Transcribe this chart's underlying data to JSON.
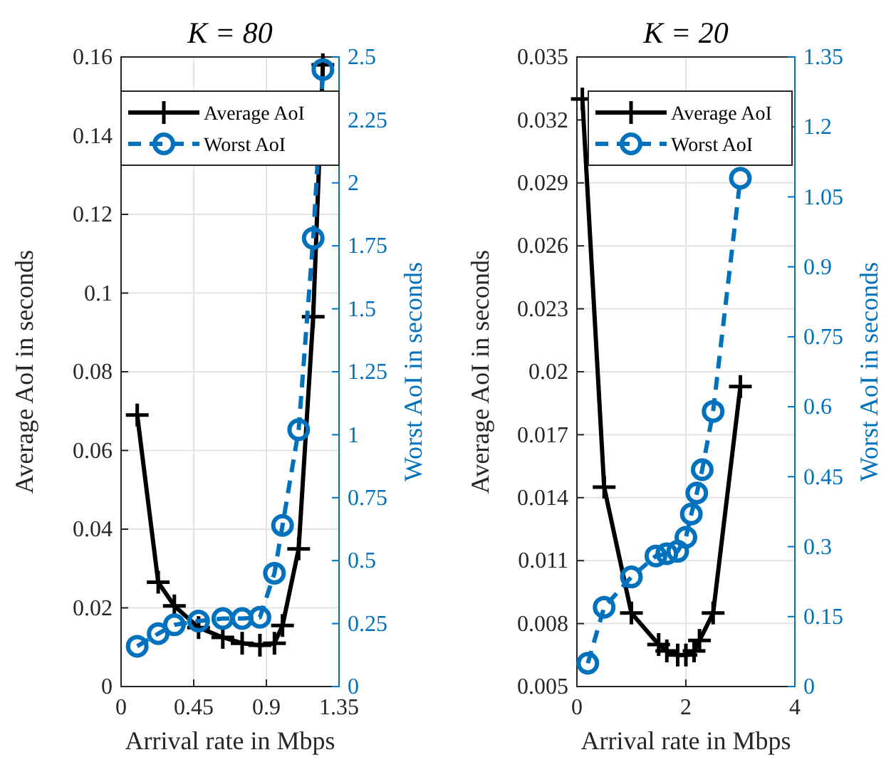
{
  "chart_data": [
    {
      "type": "line",
      "title": "K = 80",
      "xlabel": "Arrival rate in Mbps",
      "ylabel": "Average AoI in seconds",
      "y2label": "Worst AoI in seconds",
      "xlim": [
        0,
        1.35
      ],
      "xticks": [
        0,
        0.45,
        0.9,
        1.35
      ],
      "ylim": [
        0,
        0.16
      ],
      "yticks": [
        0,
        0.02,
        0.04,
        0.06,
        0.08,
        0.1,
        0.12,
        0.14,
        0.16
      ],
      "y2lim": [
        0,
        2.5
      ],
      "y2ticks": [
        0,
        0.25,
        0.5,
        0.75,
        1,
        1.25,
        1.5,
        1.75,
        2,
        2.25,
        2.5
      ],
      "grid": true,
      "legend": "top",
      "series": [
        {
          "name": "Average AoI",
          "color": "#000000",
          "marker": "cross",
          "line_style": "solid",
          "x": [
            0.1,
            0.23,
            0.33,
            0.48,
            0.63,
            0.75,
            0.86,
            0.95,
            1.0,
            1.1,
            1.19,
            1.25
          ],
          "values": [
            0.069,
            0.0265,
            0.0205,
            0.015,
            0.0125,
            0.011,
            0.0105,
            0.011,
            0.0155,
            0.035,
            0.094,
            0.158
          ]
        },
        {
          "name": "Worst AoI",
          "color": "#0072bd",
          "marker": "circle",
          "line_style": "dashed",
          "axis": "y2",
          "x": [
            0.1,
            0.23,
            0.33,
            0.48,
            0.63,
            0.75,
            0.86,
            0.95,
            1.0,
            1.1,
            1.19,
            1.25
          ],
          "values": [
            0.16,
            0.21,
            0.245,
            0.26,
            0.27,
            0.27,
            0.275,
            0.45,
            0.64,
            1.02,
            1.78,
            2.45
          ]
        }
      ]
    },
    {
      "type": "line",
      "title": "K = 20",
      "xlabel": "Arrival rate in Mbps",
      "ylabel": "Average AoI in seconds",
      "y2label": "Worst AoI in seconds",
      "xlim": [
        0,
        4
      ],
      "xticks": [
        0,
        2,
        4
      ],
      "ylim": [
        0.005,
        0.035
      ],
      "yticks": [
        0.005,
        0.008,
        0.011,
        0.014,
        0.017,
        0.02,
        0.023,
        0.026,
        0.029,
        0.032,
        0.035
      ],
      "y2lim": [
        0,
        1.35
      ],
      "y2ticks": [
        0,
        0.15,
        0.3,
        0.45,
        0.6,
        0.75,
        0.9,
        1.05,
        1.2,
        1.35
      ],
      "grid": true,
      "legend": "top",
      "series": [
        {
          "name": "Average AoI",
          "color": "#000000",
          "marker": "cross",
          "line_style": "solid",
          "x": [
            0.1,
            0.5,
            1.0,
            1.5,
            1.65,
            1.85,
            2.0,
            2.15,
            2.25,
            2.5,
            3.0
          ],
          "values": [
            0.033,
            0.0145,
            0.0085,
            0.007,
            0.0067,
            0.0065,
            0.0065,
            0.0067,
            0.0072,
            0.0085,
            0.0193
          ]
        },
        {
          "name": "Worst AoI",
          "color": "#0072bd",
          "marker": "circle",
          "line_style": "dashed",
          "axis": "y2",
          "x": [
            0.2,
            0.5,
            1.0,
            1.45,
            1.65,
            1.85,
            2.0,
            2.1,
            2.2,
            2.3,
            2.5,
            3.0
          ],
          "values": [
            0.05,
            0.17,
            0.235,
            0.28,
            0.285,
            0.29,
            0.32,
            0.37,
            0.415,
            0.465,
            0.59,
            1.09
          ]
        }
      ]
    }
  ]
}
